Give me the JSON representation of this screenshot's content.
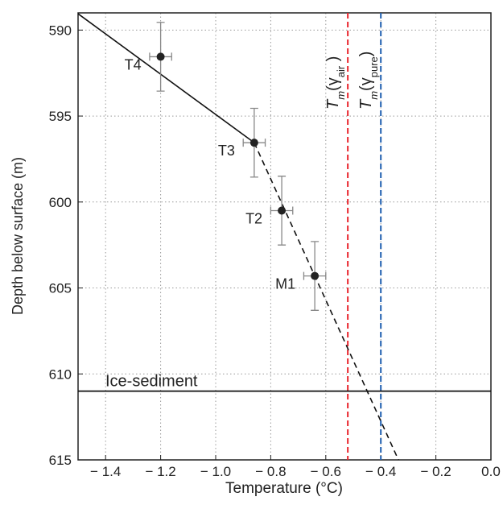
{
  "chart_data": {
    "type": "scatter",
    "xlabel": "Temperature (°C)",
    "ylabel": "Depth below surface (m)",
    "xlim": [
      -1.5,
      0.0
    ],
    "ylim": [
      589,
      615
    ],
    "y_inverted": true,
    "grid": true,
    "xticks": [
      {
        "value": -1.4,
        "label": "− 1.4"
      },
      {
        "value": -1.2,
        "label": "− 1.2"
      },
      {
        "value": -1.0,
        "label": "− 1.0"
      },
      {
        "value": -0.8,
        "label": "− 0.8"
      },
      {
        "value": -0.6,
        "label": "− 0.6"
      },
      {
        "value": -0.4,
        "label": "− 0.4"
      },
      {
        "value": -0.2,
        "label": "− 0.2"
      },
      {
        "value": 0.0,
        "label": "0.0"
      }
    ],
    "yticks": [
      590,
      595,
      600,
      605,
      610,
      615
    ],
    "points": {
      "labels": [
        "T4",
        "T3",
        "T2",
        "M1"
      ],
      "x": [
        -1.2,
        -0.86,
        -0.76,
        -0.64
      ],
      "values": [
        591.55,
        596.55,
        600.5,
        604.3
      ],
      "xerr": [
        0.04,
        0.04,
        0.04,
        0.04
      ],
      "yerr": [
        2.0,
        2.0,
        2.0,
        2.0
      ],
      "color": "#222222",
      "errcolor": "#888888"
    },
    "lines": [
      {
        "x": [
          -1.5,
          -0.86
        ],
        "values": [
          589.05,
          596.55
        ],
        "style": "solid",
        "color": "#111111"
      },
      {
        "x": [
          -0.86,
          -0.336
        ],
        "values": [
          596.55,
          615
        ],
        "style": "dashed",
        "color": "#111111"
      }
    ],
    "vlines": [
      {
        "x": -0.52,
        "color": "#e8242b",
        "label": [
          {
            "text": "T",
            "style": "italic"
          },
          {
            "text": "m",
            "style": "sub-italic"
          },
          {
            "text": "(γ"
          },
          {
            "text": "air",
            "style": "sub"
          },
          {
            "text": " )"
          }
        ]
      },
      {
        "x": -0.4,
        "color": "#1f5fb0",
        "label": [
          {
            "text": "T",
            "style": "italic"
          },
          {
            "text": "m",
            "style": "sub-italic"
          },
          {
            "text": "(γ"
          },
          {
            "text": "pure",
            "style": "sub"
          },
          {
            "text": ")"
          }
        ]
      }
    ],
    "hline": {
      "y": 611.0,
      "label": "Ice-sediment",
      "color": "#111111"
    }
  }
}
